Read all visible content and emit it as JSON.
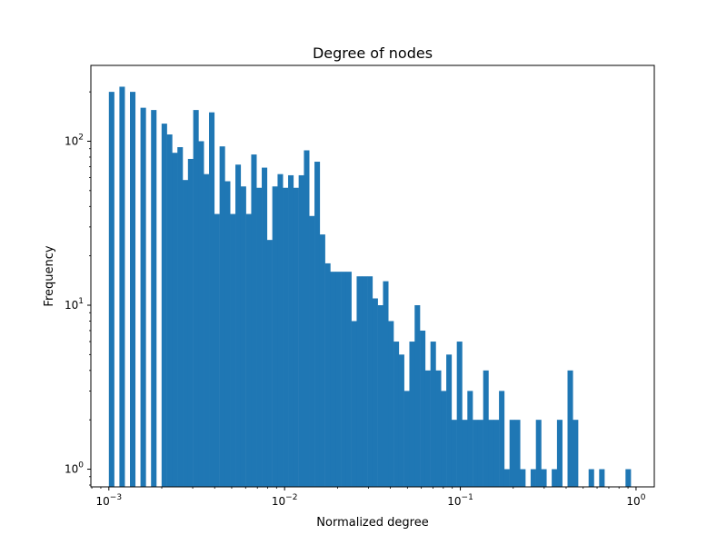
{
  "chart_data": {
    "type": "bar",
    "title": "Degree of nodes",
    "xlabel": "Normalized degree",
    "ylabel": "Frequency",
    "x_scale": "log",
    "y_scale": "log",
    "xlim": [
      0.00079,
      1.27
    ],
    "ylim": [
      0.78,
      290
    ],
    "x_ticks": [
      {
        "value": 0.001,
        "base": "10",
        "exp": "−3"
      },
      {
        "value": 0.01,
        "base": "10",
        "exp": "−2"
      },
      {
        "value": 0.1,
        "base": "10",
        "exp": "−1"
      },
      {
        "value": 1,
        "base": "10",
        "exp": "0"
      }
    ],
    "y_ticks": [
      {
        "value": 1,
        "base": "10",
        "exp": "0"
      },
      {
        "value": 10,
        "base": "10",
        "exp": "1"
      },
      {
        "value": 100,
        "base": "10",
        "exp": "2"
      }
    ],
    "bar_color": "#1f77b4",
    "bin_log_min": -3,
    "bin_log_max": 0,
    "bin_count": 100,
    "values": [
      200,
      0,
      215,
      0,
      200,
      0,
      160,
      0,
      155,
      0,
      128,
      110,
      85,
      92,
      58,
      78,
      155,
      100,
      63,
      150,
      36,
      93,
      57,
      36,
      72,
      53,
      36,
      83,
      52,
      69,
      25,
      53,
      63,
      52,
      62,
      52,
      62,
      88,
      35,
      75,
      27,
      18,
      16,
      16,
      16,
      16,
      8,
      15,
      15,
      15,
      11,
      10,
      14,
      8,
      6,
      5,
      3,
      6,
      10,
      7,
      4,
      6,
      4,
      3,
      5,
      2,
      6,
      2,
      3,
      2,
      2,
      4,
      2,
      2,
      3,
      1,
      2,
      2,
      1,
      0,
      1,
      2,
      1,
      0,
      1,
      2,
      0,
      4,
      2,
      0,
      0,
      1,
      0,
      1,
      0,
      0,
      0,
      0,
      1,
      0
    ]
  }
}
